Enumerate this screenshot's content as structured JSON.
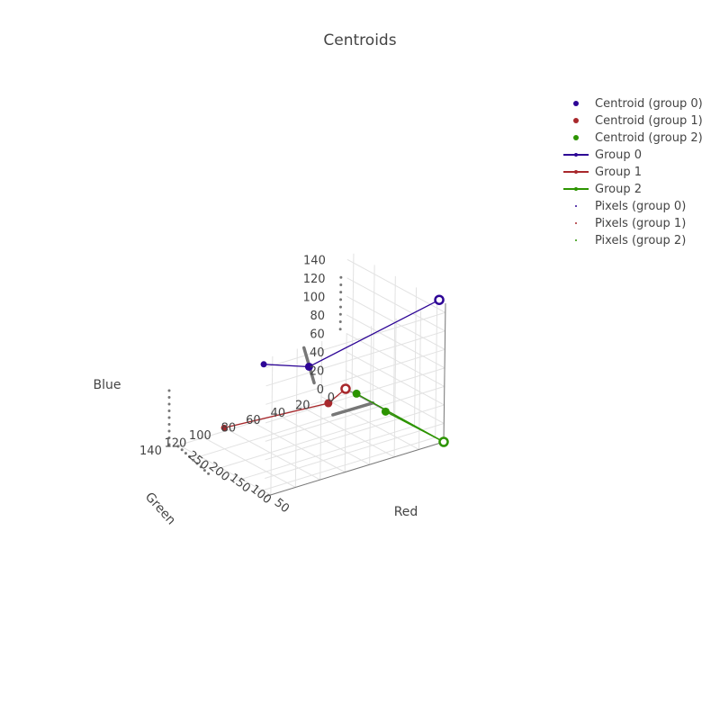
{
  "chart_data": {
    "type": "scatter3d",
    "title": "Centroids",
    "axes": {
      "x": {
        "label": "Red",
        "range": [
          30,
          265
        ],
        "ticks": [
          50,
          100,
          150,
          200,
          250
        ]
      },
      "y": {
        "label": "Green",
        "range": [
          0,
          145
        ],
        "ticks": [
          0,
          20,
          40,
          60,
          80,
          100,
          120,
          140
        ]
      },
      "z": {
        "label": "Blue",
        "range": [
          0,
          150
        ],
        "ticks": [
          0,
          20,
          40,
          60,
          80,
          100,
          120,
          140
        ]
      }
    },
    "centroids": [
      {
        "name": "Centroid (group 0)",
        "group": 0,
        "color": "#2d0596",
        "points": [
          [
            45,
            0,
            150
          ],
          [
            60,
            100,
            115
          ]
        ]
      },
      {
        "name": "Centroid (group 1)",
        "group": 1,
        "color": "#a8282c",
        "points": [
          [
            265,
            0,
            0
          ],
          [
            130,
            60,
            42
          ]
        ]
      },
      {
        "name": "Centroid (group 2)",
        "group": 2,
        "color": "#2c9400",
        "points": [
          [
            30,
            0,
            0
          ],
          [
            195,
            15,
            18
          ],
          [
            140,
            10,
            10
          ]
        ]
      }
    ],
    "group_lines": [
      {
        "name": "Group 0",
        "group": 0,
        "color": "#2d0596",
        "path": [
          [
            45,
            0,
            150
          ],
          [
            60,
            100,
            115
          ],
          [
            80,
            130,
            125
          ]
        ]
      },
      {
        "name": "Group 1",
        "group": 1,
        "color": "#a8282c",
        "path": [
          [
            265,
            0,
            0
          ],
          [
            130,
            60,
            42
          ],
          [
            260,
            100,
            0
          ]
        ]
      },
      {
        "name": "Group 2",
        "group": 2,
        "color": "#2c9400",
        "path": [
          [
            30,
            0,
            0
          ],
          [
            195,
            15,
            18
          ],
          [
            30,
            0,
            0
          ],
          [
            140,
            10,
            10
          ]
        ]
      }
    ],
    "pixels": [
      {
        "name": "Pixels (group 0)",
        "group": 0,
        "color": "#2d0596"
      },
      {
        "name": "Pixels (group 1)",
        "group": 1,
        "color": "#a8282c"
      },
      {
        "name": "Pixels (group 2)",
        "group": 2,
        "color": "#2c9400"
      }
    ]
  }
}
